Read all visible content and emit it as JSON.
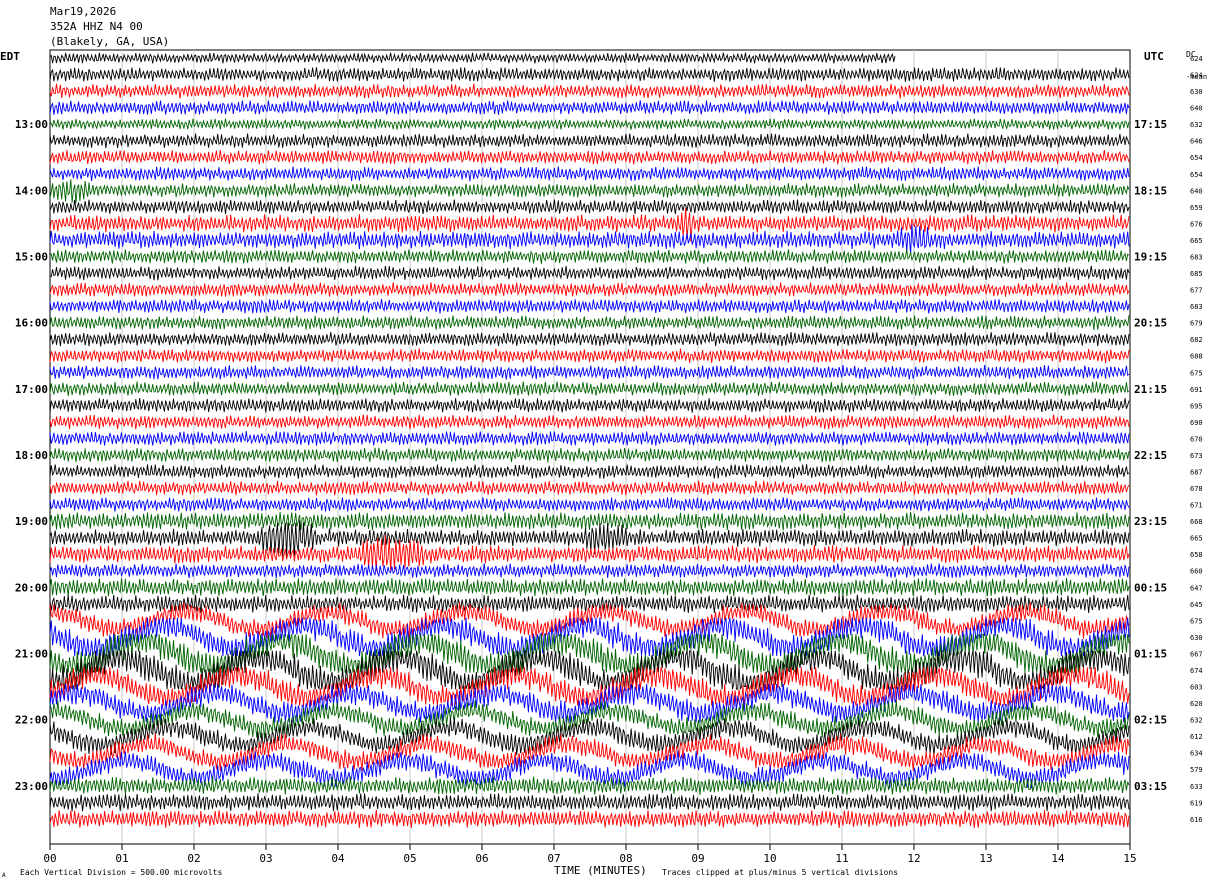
{
  "header": {
    "date": "Mar19,2026",
    "station": "352A HHZ N4 00",
    "location": "(Blakely, GA, USA)"
  },
  "timezones": {
    "left": "EDT",
    "right": "UTC"
  },
  "dc_header": {
    "top": "DC",
    "sub": "-mean"
  },
  "footer": {
    "scale_note": "Each Vertical Division =  500.00 microvolts",
    "xlabel": "TIME (MINUTES)",
    "clip_note": "Traces clipped at plus/minus 5 vertical divisions",
    "scale_mark": "A"
  },
  "chart_data": {
    "type": "line",
    "title": "352A HHZ N4 00",
    "xlabel": "TIME (MINUTES)",
    "xlim": [
      0,
      15
    ],
    "x_ticks": [
      "00",
      "01",
      "02",
      "03",
      "04",
      "05",
      "06",
      "07",
      "08",
      "09",
      "10",
      "11",
      "12",
      "13",
      "14",
      "15"
    ],
    "left_time_labels": [
      {
        "row": 4,
        "label": "13:00"
      },
      {
        "row": 8,
        "label": "14:00"
      },
      {
        "row": 12,
        "label": "15:00"
      },
      {
        "row": 16,
        "label": "16:00"
      },
      {
        "row": 20,
        "label": "17:00"
      },
      {
        "row": 24,
        "label": "18:00"
      },
      {
        "row": 28,
        "label": "19:00"
      },
      {
        "row": 32,
        "label": "20:00"
      },
      {
        "row": 36,
        "label": "21:00"
      },
      {
        "row": 40,
        "label": "22:00"
      },
      {
        "row": 44,
        "label": "23:00"
      }
    ],
    "right_time_labels": [
      {
        "row": 4,
        "label": "17:15"
      },
      {
        "row": 8,
        "label": "18:15"
      },
      {
        "row": 12,
        "label": "19:15"
      },
      {
        "row": 16,
        "label": "20:15"
      },
      {
        "row": 20,
        "label": "21:15"
      },
      {
        "row": 24,
        "label": "22:15"
      },
      {
        "row": 28,
        "label": "23:15"
      },
      {
        "row": 32,
        "label": "00:15"
      },
      {
        "row": 36,
        "label": "01:15"
      },
      {
        "row": 40,
        "label": "02:15"
      },
      {
        "row": 44,
        "label": "03:15"
      }
    ],
    "trace_colors": [
      "#000000",
      "#ff0000",
      "#0000ff",
      "#006400"
    ],
    "first_trace_color": "#000000",
    "first_trace_end_minute": 11.75,
    "dc_offsets": [
      "624",
      "624",
      "630",
      "640",
      "632",
      "646",
      "654",
      "654",
      "640",
      "659",
      "676",
      "665",
      "683",
      "685",
      "677",
      "683",
      "679",
      "682",
      "688",
      "675",
      "691",
      "695",
      "690",
      "670",
      "673",
      "687",
      "678",
      "671",
      "668",
      "665",
      "658",
      "660",
      "647",
      "645",
      "675",
      "630",
      "667",
      "674",
      "603",
      "620",
      "632",
      "612",
      "634",
      "579",
      "633",
      "619",
      "616"
    ],
    "trace_amplitude_divisions": [
      3,
      4,
      4,
      4,
      3,
      4,
      4,
      4,
      4,
      4,
      5,
      5,
      4,
      4,
      4,
      4,
      4,
      4,
      4,
      4,
      4,
      4,
      4,
      4,
      4,
      4,
      4,
      4,
      5,
      5,
      5,
      4,
      5,
      5,
      6,
      8,
      9,
      9,
      8,
      7,
      6,
      6,
      6,
      6,
      5,
      5,
      5
    ],
    "events": [
      {
        "row": 8,
        "start_minute": 0.0,
        "end_minute": 0.6,
        "peak_divisions": 5
      },
      {
        "row": 10,
        "start_minute": 8.75,
        "end_minute": 8.95,
        "peak_divisions": 10
      },
      {
        "row": 11,
        "start_minute": 11.8,
        "end_minute": 12.2,
        "peak_divisions": 7
      },
      {
        "row": 29,
        "start_minute": 2.9,
        "end_minute": 3.7,
        "peak_divisions": 12
      },
      {
        "row": 29,
        "start_minute": 7.4,
        "end_minute": 8.0,
        "peak_divisions": 7
      },
      {
        "row": 30,
        "start_minute": 4.3,
        "end_minute": 5.2,
        "peak_divisions": 10
      }
    ],
    "clip_divisions": 5
  }
}
